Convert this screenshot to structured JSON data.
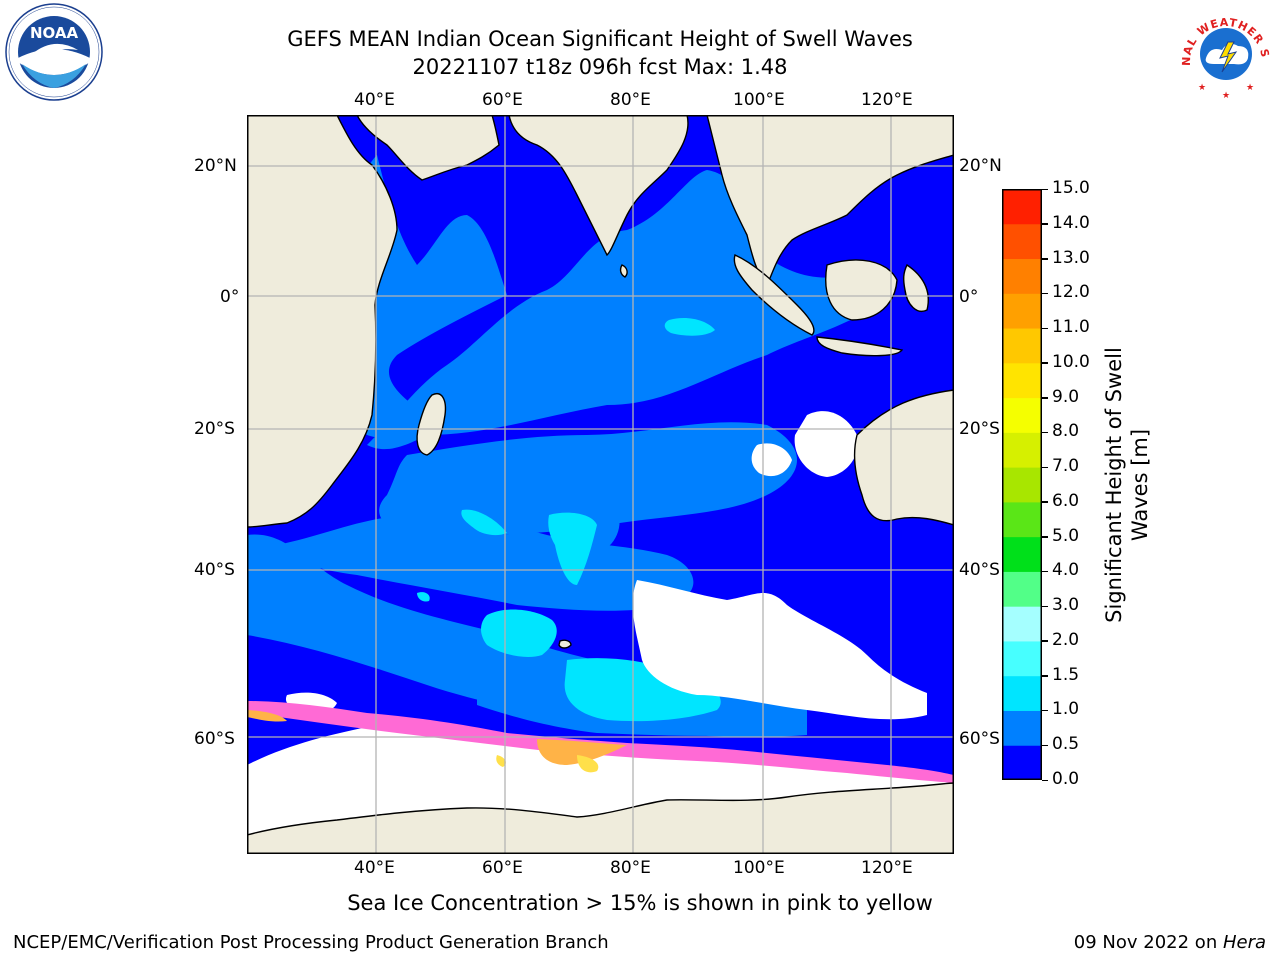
{
  "title_line1": "GEFS MEAN Indian Ocean Significant Height of Swell Waves",
  "title_line2": "20221107 t18z 096h fcst   Max: 1.48",
  "map": {
    "lon_labels": [
      "40°E",
      "60°E",
      "80°E",
      "100°E",
      "120°E"
    ],
    "lat_labels": [
      "20°N",
      "0°",
      "20°S",
      "40°S",
      "60°S"
    ],
    "colors": {
      "land": "#efecdc",
      "coast": "#000000",
      "grid": "#b4b4b4",
      "ice_area": "#ffffff",
      "ice_pink": "#ff6ad5",
      "ice_orange": "#ffb347",
      "ice_yellow": "#ffe04a"
    }
  },
  "colorbar": {
    "label": "Significant Height of Swell Waves [m]",
    "tick_labels": [
      "15.0",
      "14.0",
      "13.0",
      "12.0",
      "11.0",
      "10.0",
      "9.0",
      "8.0",
      "7.0",
      "6.0",
      "5.0",
      "4.0",
      "3.0",
      "2.0",
      "1.5",
      "1.0",
      "0.5",
      "0.0"
    ],
    "colors": [
      "#0000ff",
      "#0080ff",
      "#00e5ff",
      "#47ffff",
      "#a5ffff",
      "#52ff88",
      "#00e01a",
      "#5ae617",
      "#a8e600",
      "#d6f000",
      "#f5ff00",
      "#ffe400",
      "#ffc800",
      "#ffa000",
      "#ff8000",
      "#ff5000",
      "#ff2000"
    ]
  },
  "ice_note": "Sea Ice Concentration > 15% is shown in pink to yellow",
  "footer_left": "NCEP/EMC/Verification Post Processing Product Generation Branch",
  "footer_date": "09 Nov 2022 on ",
  "footer_host": "Hera",
  "logos": {
    "noaa_text": "NOAA",
    "nws_text": "NATIONAL WEATHER SERVICE"
  }
}
